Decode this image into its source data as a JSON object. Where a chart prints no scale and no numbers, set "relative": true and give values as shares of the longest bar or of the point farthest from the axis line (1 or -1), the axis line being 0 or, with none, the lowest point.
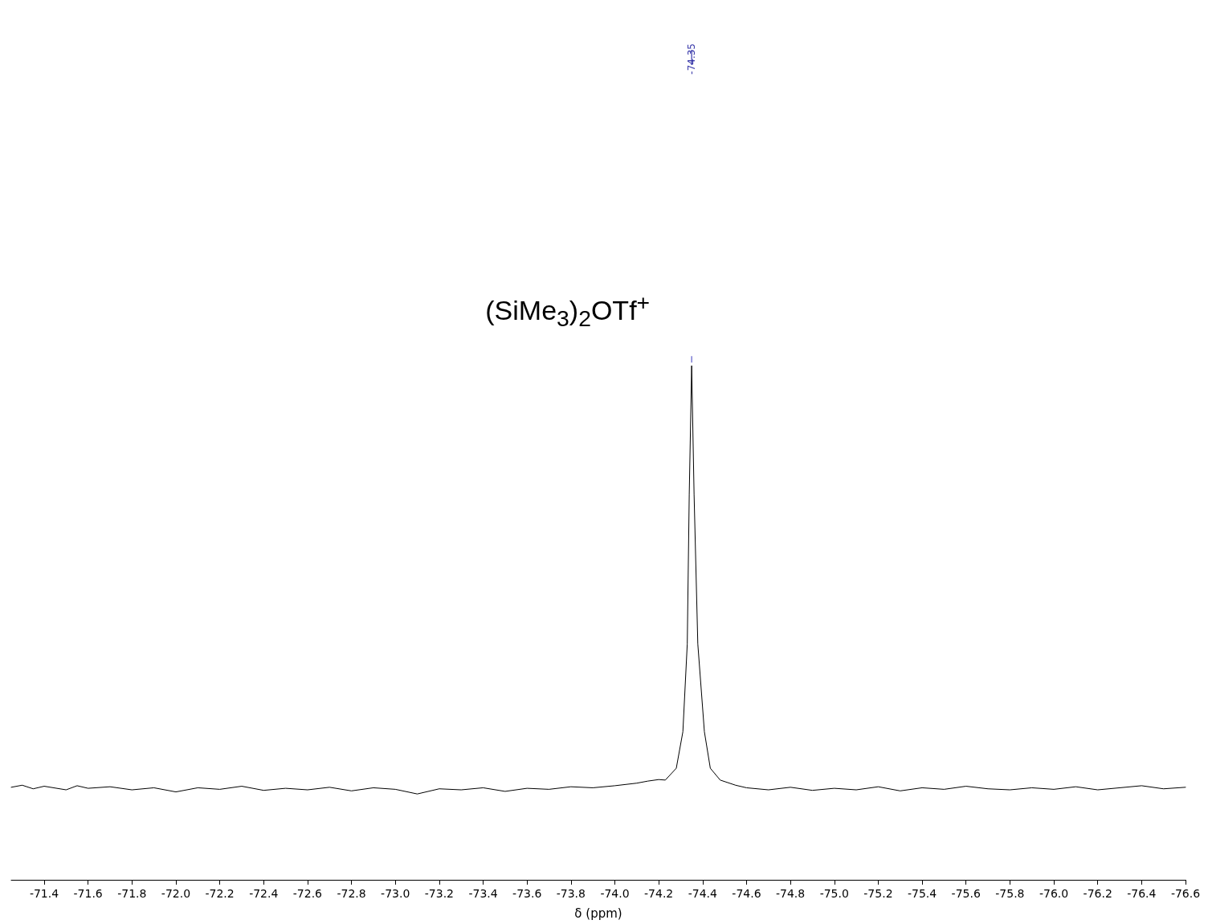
{
  "chart_data": {
    "type": "line",
    "xlabel": "δ (ppm)",
    "relative": true,
    "grid": false,
    "marker": "none",
    "line_style": "solid",
    "xlim": [
      -71.25,
      -76.6
    ],
    "xticks": [
      -71.4,
      -71.6,
      -71.8,
      {
        "value": -72,
        "label": "-72.0"
      },
      -72.2,
      -72.4,
      -72.6,
      -72.8,
      {
        "value": -73,
        "label": "-73.0"
      },
      -73.2,
      -73.4,
      -73.6,
      -73.8,
      {
        "value": -74,
        "label": "-74.0"
      },
      -74.2,
      -74.4,
      -74.6,
      -74.8,
      {
        "value": -75,
        "label": "-75.0"
      },
      -75.2,
      -75.4,
      -75.6,
      -75.8,
      {
        "value": -76,
        "label": "-76.0"
      },
      -76.2,
      -76.4,
      -76.6
    ],
    "series": [
      {
        "color": "#000000",
        "x": [
          -71.25,
          -71.3,
          -71.35,
          -71.4,
          -71.5,
          -71.55,
          -71.6,
          -71.7,
          -71.8,
          -71.9,
          -72.0,
          -72.1,
          -72.2,
          -72.3,
          -72.4,
          -72.5,
          -72.6,
          -72.7,
          -72.8,
          -72.9,
          -73.0,
          -73.1,
          -73.2,
          -73.3,
          -73.4,
          -73.5,
          -73.6,
          -73.7,
          -73.8,
          -73.9,
          -74.0,
          -74.1,
          -74.15,
          -74.2,
          -74.23,
          -74.28,
          -74.31,
          -74.33,
          -74.339,
          -74.35,
          -74.361,
          -74.378,
          -74.408,
          -74.435,
          -74.48,
          -74.55,
          -74.6,
          -74.7,
          -74.8,
          -74.9,
          -75.0,
          -75.1,
          -75.2,
          -75.3,
          -75.4,
          -75.5,
          -75.6,
          -75.7,
          -75.8,
          -75.9,
          -76.0,
          -76.1,
          -76.2,
          -76.3,
          -76.4,
          -76.5,
          -76.6
        ],
        "values": [
          0.18,
          0.184,
          0.177,
          0.182,
          0.175,
          0.183,
          0.178,
          0.181,
          0.175,
          0.179,
          0.171,
          0.179,
          0.176,
          0.182,
          0.174,
          0.178,
          0.175,
          0.18,
          0.173,
          0.179,
          0.176,
          0.167,
          0.177,
          0.175,
          0.179,
          0.172,
          0.178,
          0.176,
          0.181,
          0.179,
          0.183,
          0.188,
          0.192,
          0.195,
          0.194,
          0.217,
          0.288,
          0.459,
          0.75,
          1,
          0.75,
          0.459,
          0.288,
          0.217,
          0.194,
          0.184,
          0.179,
          0.175,
          0.18,
          0.174,
          0.178,
          0.175,
          0.181,
          0.173,
          0.179,
          0.176,
          0.182,
          0.177,
          0.175,
          0.179,
          0.176,
          0.181,
          0.175,
          0.179,
          0.183,
          0.177,
          0.18
        ]
      }
    ],
    "annotations": [
      "-74.35",
      "(SiMe$_{3}$)$_{2}$OTf$^{+}$"
    ]
  }
}
